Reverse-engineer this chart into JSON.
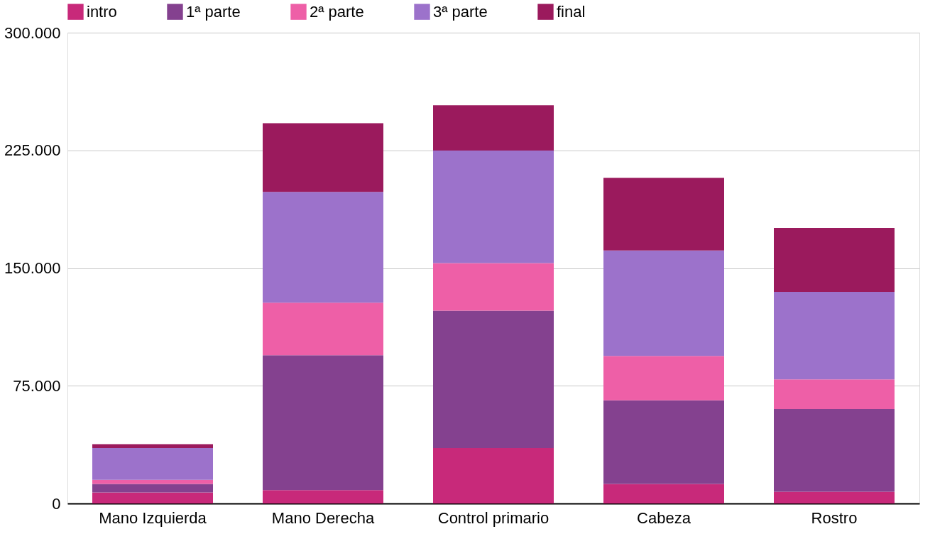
{
  "chart_data": {
    "type": "bar",
    "stacked": true,
    "categories": [
      "Mano Izquierda",
      "Mano Derecha",
      "Control primario",
      "Cabeza",
      "Rostro"
    ],
    "series": [
      {
        "name": "intro",
        "color": "#c8297a",
        "values": [
          7000,
          8500,
          35300,
          12400,
          7500
        ]
      },
      {
        "name": "1ª parte",
        "color": "#84418f",
        "values": [
          5400,
          86000,
          87600,
          53300,
          52700
        ]
      },
      {
        "name": "2ª parte",
        "color": "#ee5fa7",
        "values": [
          2600,
          33400,
          30300,
          28300,
          18900
        ]
      },
      {
        "name": "3ª parte",
        "color": "#9c72cb",
        "values": [
          20300,
          70600,
          71700,
          67200,
          55700
        ]
      },
      {
        "name": "final",
        "color": "#9b1a5d",
        "values": [
          2500,
          43800,
          28800,
          46300,
          40800
        ]
      }
    ],
    "ylim": [
      0,
      300000
    ],
    "yticks": [
      0,
      {
        "value": 75000,
        "label": "75.000"
      },
      {
        "value": 150000,
        "label": "150.000"
      },
      {
        "value": 225000,
        "label": "225.000"
      },
      {
        "value": 300000,
        "label": "300.000"
      }
    ],
    "grid": "y",
    "legend": "top"
  }
}
